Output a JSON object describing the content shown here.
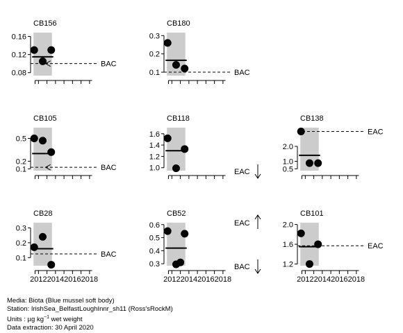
{
  "chart_data": [
    {
      "title": "CB156",
      "type": "scatter",
      "x": [
        2011.5,
        2012.5,
        2013.5
      ],
      "y": [
        0.13,
        0.105,
        0.13
      ],
      "yticks": [
        0.08,
        0.12,
        0.16
      ],
      "ylim": [
        0.075,
        0.17
      ],
      "assess": {
        "x0": 2011.5,
        "x1": 2013.5,
        "y": 0.115
      },
      "ref": {
        "label": "BAC",
        "value": 0.1
      },
      "arrow": "left",
      "xticks": [],
      "xlim": [
        2011.4,
        2018.5
      ]
    },
    {
      "title": "CB180",
      "type": "scatter",
      "x": [
        2011.5,
        2012.5,
        2013.5
      ],
      "y": [
        0.26,
        0.14,
        0.12
      ],
      "yticks": [
        0.1,
        0.2,
        0.3
      ],
      "ylim": [
        0.085,
        0.32
      ],
      "assess": {
        "x0": 2011.5,
        "x1": 2013.5,
        "y": 0.165
      },
      "ref": {
        "label": "BAC",
        "value": 0.1
      },
      "arrow": "none",
      "xticks": [],
      "xlim": [
        2011.4,
        2018.5
      ]
    },
    {
      "title": "CB105",
      "type": "scatter",
      "x": [
        2011.5,
        2012.5,
        2013.5
      ],
      "y": [
        0.5,
        0.47,
        0.32
      ],
      "yticks": [
        0.1,
        0.2,
        0.5
      ],
      "ylim": [
        0.085,
        0.65
      ],
      "assess": {
        "x0": 2011.5,
        "x1": 2013.5,
        "y": 0.3
      },
      "ref": {
        "label": "BAC",
        "value": 0.12
      },
      "arrow": "left",
      "xticks": [],
      "xlim": [
        2011.4,
        2018.5
      ]
    },
    {
      "title": "CB118",
      "type": "scatter",
      "x": [
        2011.5,
        2012.5,
        2013.5
      ],
      "y": [
        1.52,
        0.99,
        1.33
      ],
      "yticks": [
        1.0,
        1.2,
        1.4,
        1.6
      ],
      "ylim": [
        0.96,
        1.72
      ],
      "assess": {
        "x0": 2011.5,
        "x1": 2013.5,
        "y": 1.3
      },
      "ref": {
        "label": "EAC",
        "value": null
      },
      "arrow": "down",
      "xticks": [],
      "xlim": [
        2011.4,
        2018.5
      ]
    },
    {
      "title": "CB138",
      "type": "scatter",
      "x": [
        2011.5,
        2012.5,
        2013.5
      ],
      "y": [
        3.0,
        0.88,
        0.88
      ],
      "yticks": [
        0.5,
        1.0,
        2.0
      ],
      "ylim": [
        0.42,
        3.3
      ],
      "assess": {
        "x0": 2011.5,
        "x1": 2013.5,
        "y": 1.4
      },
      "ref": {
        "label": "EAC",
        "value": 3.0
      },
      "arrow": "none",
      "xticks": [],
      "xlim": [
        2011.4,
        2018.5
      ]
    },
    {
      "title": "CB28",
      "type": "scatter",
      "x": [
        2011.5,
        2012.5,
        2013.5
      ],
      "y": [
        0.17,
        0.24,
        0.052
      ],
      "yticks": [
        0.1,
        0.2,
        0.3
      ],
      "ylim": [
        0.05,
        0.34
      ],
      "assess": {
        "x0": 2011.5,
        "x1": 2013.5,
        "y": 0.16
      },
      "ref": {
        "label": "BAC",
        "value": 0.125
      },
      "arrow": "none",
      "xticks": [
        "2012",
        "2014",
        "2016",
        "2018"
      ],
      "xlim": [
        2011.4,
        2018.5
      ]
    },
    {
      "title": "CB52",
      "type": "scatter",
      "x": [
        2011.5,
        2012.5,
        2013.0,
        2013.5
      ],
      "y": [
        0.55,
        0.295,
        0.31,
        0.53
      ],
      "yticks": [
        0.3,
        0.4,
        0.5,
        0.6
      ],
      "ylim": [
        0.29,
        0.62
      ],
      "assess": {
        "x0": 2011.5,
        "x1": 2013.5,
        "y": 0.42
      },
      "ref": {
        "label": "EAC",
        "value": null
      },
      "ref2": {
        "label": "BAC"
      },
      "arrow": "updown",
      "xticks": [
        "2012",
        "2014",
        "2016",
        "2018"
      ],
      "xlim": [
        2011.4,
        2018.5
      ]
    },
    {
      "title": "CB101",
      "type": "scatter",
      "x": [
        2011.5,
        2012.5,
        2013.5
      ],
      "y": [
        1.82,
        1.2,
        1.6
      ],
      "yticks": [
        1.2,
        1.6,
        2.0
      ],
      "ylim": [
        1.18,
        2.05
      ],
      "assess": {
        "x0": 2011.5,
        "x1": 2013.5,
        "y": 1.55
      },
      "ref": {
        "label": "EAC",
        "value": 1.57
      },
      "arrow": "none",
      "xticks": [
        "2012",
        "2014",
        "2016",
        "2018"
      ],
      "xlim": [
        2011.4,
        2018.5
      ]
    }
  ],
  "footer": {
    "media": "Media: Biota (Blue mussel soft body)",
    "station": "Station: IrishSea_BelfastLoughInnr_sh11 (Ross'sRockM)",
    "units_prefix": "Units : µg kg",
    "units_sup": "−1",
    "units_suffix": " wet weight",
    "extraction": "Data extraction: 30 April 2020"
  }
}
